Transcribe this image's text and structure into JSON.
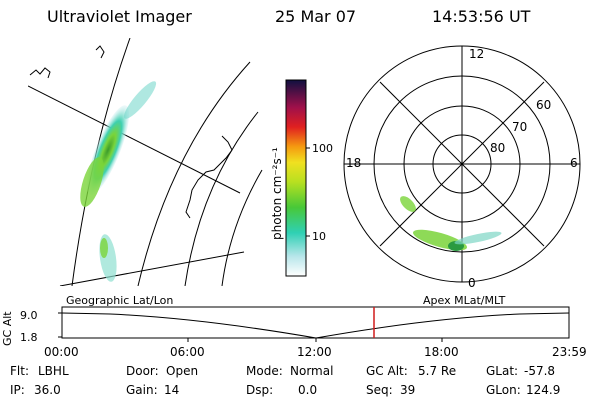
{
  "header": {
    "instrument": "Ultraviolet Imager",
    "date": "25 Mar 07",
    "time": "14:53:56 UT"
  },
  "colorbar": {
    "unit_label": "photon cm⁻²s⁻¹",
    "tick_100": "100",
    "tick_10": "10"
  },
  "polar_plot": {
    "mlt_12": "12",
    "mlt_18": "18",
    "mlt_6": "6",
    "mlt_0": "0",
    "lat_60": "60",
    "lat_70": "70",
    "lat_80": "80"
  },
  "timeline": {
    "left_title": "Geographic Lat/Lon",
    "right_title": "Apex MLat/MLT",
    "axis_label": "GC Alt",
    "y_top": "9.0",
    "y_bottom": "1.8",
    "x_ticks": [
      "00:00",
      "06:00",
      "12:00",
      "18:00",
      "23:59"
    ],
    "marker_color": "#d11a1a"
  },
  "status": {
    "row1": [
      {
        "label": "Flt:",
        "value": "LBHL"
      },
      {
        "label": "Door:",
        "value": "Open"
      },
      {
        "label": "Mode:",
        "value": "Normal"
      },
      {
        "label": "GC Alt:",
        "value": "5.7 Re"
      },
      {
        "label": "GLat:",
        "value": "-57.8"
      }
    ],
    "row2": [
      {
        "label": "IP:",
        "value": "36.0"
      },
      {
        "label": "Gain:",
        "value": "14"
      },
      {
        "label": "Dsp:",
        "value": "0.0"
      },
      {
        "label": "Seq:",
        "value": "39"
      },
      {
        "label": "GLon:",
        "value": "124.9"
      }
    ]
  }
}
